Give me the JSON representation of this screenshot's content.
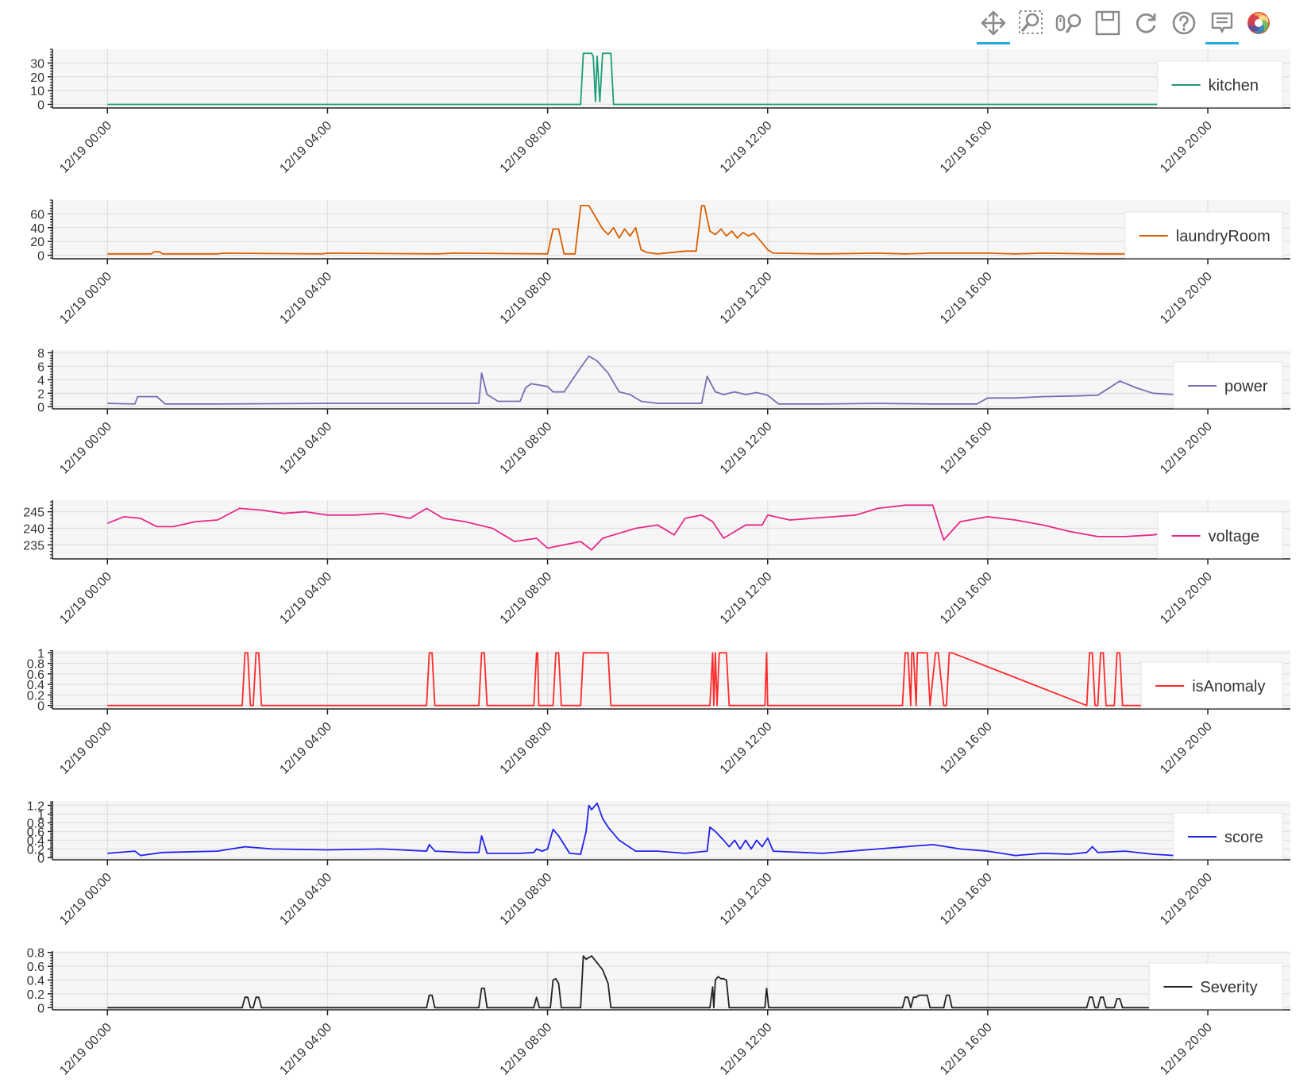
{
  "toolbar": {
    "tools": [
      {
        "name": "pan-tool",
        "icon": "pan-icon",
        "active": true
      },
      {
        "name": "box-zoom-tool",
        "icon": "box-zoom-icon",
        "active": false
      },
      {
        "name": "wheel-zoom-tool",
        "icon": "wheel-zoom-icon",
        "active": false
      },
      {
        "name": "save-tool",
        "icon": "save-icon",
        "active": false
      },
      {
        "name": "reset-tool",
        "icon": "reset-icon",
        "active": false
      },
      {
        "name": "help-tool",
        "icon": "help-icon",
        "active": false
      },
      {
        "name": "hover-tool",
        "icon": "hover-icon",
        "active": true
      },
      {
        "name": "bokeh-logo",
        "icon": "bokeh-logo-icon",
        "active": false
      }
    ],
    "accent": "#26aae1"
  },
  "chart_data": [
    {
      "type": "line",
      "series": [
        {
          "name": "kitchen",
          "color": "#1b9e77",
          "x": [
            0,
            8.6,
            8.65,
            8.8,
            8.83,
            8.87,
            8.9,
            8.95,
            9.0,
            9.05,
            9.15,
            9.2,
            9.3,
            19.4
          ],
          "y": [
            0,
            0,
            37,
            37,
            35,
            2,
            35,
            2,
            37,
            37,
            37,
            0,
            0,
            0
          ]
        }
      ],
      "yticks": [
        0,
        10,
        20,
        30
      ],
      "ylim": [
        -2,
        40
      ],
      "legend": "right",
      "xticks": [
        "12/19 00:00",
        "12/19 04:00",
        "12/19 08:00",
        "12/19 12:00",
        "12/19 16:00",
        "12/19 20:00"
      ],
      "xlim": [
        -1,
        21.5
      ],
      "grid": true
    },
    {
      "type": "line",
      "series": [
        {
          "name": "laundryRoom",
          "color": "#d95f02",
          "x": [
            0,
            0.8,
            0.85,
            0.95,
            1.0,
            2.0,
            2.1,
            3.9,
            4.0,
            6.0,
            6.3,
            8.0,
            8.1,
            8.2,
            8.3,
            8.5,
            8.6,
            8.75,
            9.0,
            9.1,
            9.2,
            9.3,
            9.4,
            9.5,
            9.6,
            9.7,
            9.8,
            10.0,
            10.5,
            10.7,
            10.8,
            10.85,
            10.95,
            11.05,
            11.15,
            11.25,
            11.35,
            11.45,
            11.55,
            11.65,
            11.75,
            11.9,
            12.0,
            12.1,
            13.0,
            14.0,
            14.5,
            15.0,
            16.0,
            16.5,
            17.0,
            18.0,
            19.4
          ],
          "y": [
            2,
            2,
            5,
            5,
            2,
            2,
            3,
            2,
            3,
            2,
            3,
            2,
            38,
            38,
            2,
            2,
            72,
            72,
            38,
            30,
            40,
            25,
            38,
            28,
            40,
            8,
            4,
            2,
            6,
            6,
            72,
            72,
            35,
            30,
            38,
            28,
            35,
            25,
            33,
            28,
            32,
            18,
            8,
            3,
            2,
            3,
            2,
            3,
            3,
            2,
            3,
            2,
            2
          ]
        }
      ],
      "yticks": [
        0,
        20,
        40,
        60
      ],
      "ylim": [
        -4,
        80
      ],
      "legend": "right",
      "xticks": [
        "12/19 00:00",
        "12/19 04:00",
        "12/19 08:00",
        "12/19 12:00",
        "12/19 16:00",
        "12/19 20:00"
      ],
      "xlim": [
        -1,
        21.5
      ],
      "grid": true
    },
    {
      "type": "line",
      "series": [
        {
          "name": "power",
          "color": "#7570b3",
          "x": [
            0,
            0.5,
            0.55,
            0.9,
            1.05,
            2.0,
            4.0,
            6.0,
            6.75,
            6.8,
            6.9,
            7.1,
            7.5,
            7.6,
            7.7,
            8.0,
            8.1,
            8.3,
            8.6,
            8.75,
            8.9,
            9.1,
            9.3,
            9.5,
            9.7,
            10.0,
            10.5,
            10.8,
            10.9,
            11.05,
            11.2,
            11.4,
            11.6,
            11.8,
            12.0,
            12.2,
            13.0,
            14.0,
            15.0,
            15.8,
            16.0,
            16.5,
            17.0,
            17.6,
            18.0,
            18.4,
            18.7,
            19.0,
            19.4
          ],
          "y": [
            0.5,
            0.4,
            1.5,
            1.5,
            0.4,
            0.4,
            0.5,
            0.5,
            0.5,
            5.0,
            1.8,
            0.8,
            0.8,
            2.8,
            3.4,
            3.0,
            2.2,
            2.2,
            5.8,
            7.5,
            6.8,
            5.0,
            2.2,
            1.8,
            0.8,
            0.5,
            0.5,
            0.5,
            4.5,
            2.2,
            1.8,
            2.2,
            1.8,
            2.1,
            1.7,
            0.4,
            0.4,
            0.5,
            0.4,
            0.4,
            1.3,
            1.3,
            1.5,
            1.6,
            1.7,
            3.8,
            2.8,
            2.0,
            1.8
          ]
        }
      ],
      "yticks": [
        0,
        2,
        4,
        6,
        8
      ],
      "ylim": [
        -0.2,
        8.4
      ],
      "legend": "right",
      "xticks": [
        "12/19 00:00",
        "12/19 04:00",
        "12/19 08:00",
        "12/19 12:00",
        "12/19 16:00",
        "12/19 20:00"
      ],
      "xlim": [
        -1,
        21.5
      ],
      "grid": true
    },
    {
      "type": "line",
      "series": [
        {
          "name": "voltage",
          "color": "#e7298a",
          "x": [
            0,
            0.3,
            0.6,
            0.9,
            1.2,
            1.6,
            2.0,
            2.4,
            2.8,
            3.2,
            3.6,
            4.0,
            4.5,
            5.0,
            5.5,
            5.8,
            6.1,
            6.5,
            7.0,
            7.4,
            7.8,
            8.0,
            8.3,
            8.6,
            8.8,
            9.0,
            9.3,
            9.6,
            10.0,
            10.3,
            10.5,
            10.8,
            11.0,
            11.2,
            11.4,
            11.6,
            11.9,
            12.0,
            12.4,
            12.8,
            13.2,
            13.6,
            14.0,
            14.5,
            15.0,
            15.2,
            15.5,
            16.0,
            16.5,
            17.0,
            17.5,
            18.0,
            18.5,
            19.0,
            19.4
          ],
          "y": [
            241.5,
            243.5,
            243,
            240.5,
            240.5,
            242,
            242.5,
            246,
            245.5,
            244.5,
            245,
            244,
            244,
            244.5,
            243,
            246,
            243,
            242,
            240,
            236,
            237,
            234,
            235,
            236,
            233.5,
            237,
            238.5,
            240,
            241,
            238,
            243,
            244,
            242,
            237,
            239,
            241,
            241,
            244,
            242.5,
            243,
            243.5,
            244,
            246,
            247,
            247,
            236.5,
            242,
            243.5,
            242.5,
            241,
            239,
            237.5,
            237.5,
            238,
            239
          ]
        }
      ],
      "yticks": [
        235,
        240,
        245
      ],
      "ylim": [
        231,
        248.5
      ],
      "legend": "right",
      "xticks": [
        "12/19 00:00",
        "12/19 04:00",
        "12/19 08:00",
        "12/19 12:00",
        "12/19 16:00",
        "12/19 20:00"
      ],
      "xlim": [
        -1,
        21.5
      ],
      "grid": true
    },
    {
      "type": "line",
      "series": [
        {
          "name": "isAnomaly",
          "color": "#ff2a2a",
          "x": [
            0,
            2.45,
            2.5,
            2.55,
            2.6,
            2.65,
            2.7,
            2.75,
            2.8,
            5.8,
            5.85,
            5.9,
            5.95,
            6.75,
            6.8,
            6.85,
            6.9,
            7.75,
            7.8,
            7.82,
            7.84,
            8.1,
            8.15,
            8.2,
            8.25,
            8.6,
            8.65,
            9.1,
            9.15,
            10.95,
            11.0,
            11.02,
            11.05,
            11.08,
            11.12,
            11.15,
            11.2,
            11.25,
            11.3,
            11.95,
            11.98,
            12.0,
            14.45,
            14.5,
            14.55,
            14.6,
            14.62,
            14.65,
            14.7,
            14.72,
            14.75,
            14.9,
            14.95,
            15.05,
            15.1,
            15.2,
            15.25,
            15.3,
            15.35,
            17.8,
            17.85,
            17.9,
            17.95,
            18.0,
            18.05,
            18.1,
            18.15,
            18.3,
            18.35,
            18.4,
            18.45,
            19.4
          ],
          "y": [
            0,
            0,
            1,
            1,
            0,
            0,
            1,
            1,
            0,
            0,
            1,
            1,
            0,
            0,
            1,
            1,
            0,
            0,
            1,
            1,
            0,
            0,
            1,
            1,
            0,
            0,
            1,
            1,
            0,
            0,
            1,
            0,
            1,
            0,
            1,
            1,
            1,
            1,
            0,
            0,
            1,
            0,
            0,
            1,
            1,
            0,
            1,
            1,
            0,
            1,
            1,
            1,
            0,
            1,
            1,
            0,
            0,
            1,
            1,
            0,
            1,
            1,
            0,
            0,
            1,
            1,
            0,
            0,
            1,
            1,
            0,
            0
          ]
        }
      ],
      "yticks": [
        0,
        0.2,
        0.4,
        0.6,
        0.8,
        1
      ],
      "ylim": [
        -0.05,
        1.05
      ],
      "legend": "right",
      "xticks": [
        "12/19 00:00",
        "12/19 04:00",
        "12/19 08:00",
        "12/19 12:00",
        "12/19 16:00",
        "12/19 20:00"
      ],
      "xlim": [
        -1,
        21.5
      ],
      "grid": true
    },
    {
      "type": "line",
      "series": [
        {
          "name": "score",
          "color": "#2222ee",
          "x": [
            0,
            0.5,
            0.6,
            1.0,
            2.0,
            2.5,
            3.0,
            4.0,
            5.0,
            5.8,
            5.85,
            5.95,
            6.5,
            6.75,
            6.8,
            6.9,
            7.5,
            7.75,
            7.8,
            7.9,
            8.0,
            8.1,
            8.2,
            8.4,
            8.6,
            8.7,
            8.75,
            8.8,
            8.9,
            9.0,
            9.1,
            9.3,
            9.6,
            10.0,
            10.5,
            10.9,
            10.95,
            11.05,
            11.2,
            11.3,
            11.4,
            11.5,
            11.6,
            11.7,
            11.8,
            11.9,
            12.0,
            12.1,
            13.0,
            14.0,
            14.5,
            15.0,
            15.5,
            16.0,
            16.5,
            17.0,
            17.5,
            17.8,
            17.9,
            18.0,
            18.5,
            19.0,
            19.4
          ],
          "y": [
            0.1,
            0.15,
            0.05,
            0.12,
            0.15,
            0.25,
            0.2,
            0.18,
            0.2,
            0.15,
            0.3,
            0.15,
            0.12,
            0.12,
            0.5,
            0.1,
            0.1,
            0.12,
            0.2,
            0.15,
            0.2,
            0.65,
            0.5,
            0.1,
            0.08,
            0.6,
            1.2,
            1.1,
            1.25,
            0.9,
            0.7,
            0.4,
            0.15,
            0.15,
            0.1,
            0.15,
            0.7,
            0.6,
            0.4,
            0.25,
            0.4,
            0.2,
            0.4,
            0.2,
            0.4,
            0.25,
            0.45,
            0.15,
            0.1,
            0.2,
            0.25,
            0.3,
            0.2,
            0.15,
            0.05,
            0.1,
            0.08,
            0.12,
            0.25,
            0.12,
            0.15,
            0.08,
            0.05
          ]
        }
      ],
      "yticks": [
        0,
        0.2,
        0.4,
        0.6,
        0.8,
        1,
        1.2
      ],
      "ylim": [
        -0.03,
        1.3
      ],
      "legend": "right",
      "xticks": [
        "12/19 00:00",
        "12/19 04:00",
        "12/19 08:00",
        "12/19 12:00",
        "12/19 16:00",
        "12/19 20:00"
      ],
      "xlim": [
        -1,
        21.5
      ],
      "grid": true
    },
    {
      "type": "line",
      "series": [
        {
          "name": "Severity",
          "color": "#222222",
          "x": [
            0,
            2.45,
            2.5,
            2.55,
            2.6,
            2.65,
            2.7,
            2.75,
            2.8,
            5.8,
            5.85,
            5.9,
            5.95,
            6.75,
            6.8,
            6.85,
            6.9,
            7.75,
            7.8,
            7.85,
            8.05,
            8.1,
            8.15,
            8.2,
            8.25,
            8.6,
            8.65,
            8.7,
            8.8,
            8.9,
            9.0,
            9.1,
            9.15,
            10.95,
            11.0,
            11.02,
            11.05,
            11.1,
            11.15,
            11.2,
            11.25,
            11.3,
            11.95,
            11.98,
            12.02,
            14.45,
            14.5,
            14.55,
            14.6,
            14.65,
            14.7,
            14.75,
            14.8,
            14.9,
            14.95,
            15.05,
            15.2,
            15.25,
            15.3,
            15.35,
            17.8,
            17.85,
            17.9,
            17.95,
            18.0,
            18.05,
            18.1,
            18.15,
            18.3,
            18.35,
            18.4,
            18.45,
            19.1
          ],
          "y": [
            0,
            0,
            0.15,
            0.15,
            0,
            0,
            0.15,
            0.15,
            0,
            0,
            0.18,
            0.18,
            0,
            0,
            0.28,
            0.28,
            0,
            0,
            0.15,
            0,
            0,
            0.4,
            0.42,
            0.35,
            0,
            0,
            0.75,
            0.7,
            0.75,
            0.65,
            0.55,
            0.35,
            0,
            0,
            0.3,
            0,
            0.4,
            0.45,
            0.42,
            0.42,
            0.4,
            0,
            0,
            0.28,
            0,
            0,
            0.15,
            0.15,
            0,
            0.15,
            0.15,
            0.18,
            0.18,
            0.18,
            0,
            0,
            0,
            0.18,
            0.18,
            0,
            0,
            0.15,
            0.15,
            0,
            0,
            0.15,
            0.15,
            0,
            0,
            0.13,
            0.13,
            0,
            0
          ]
        }
      ],
      "yticks": [
        0,
        0.2,
        0.4,
        0.6,
        0.8
      ],
      "ylim": [
        -0.02,
        0.82
      ],
      "legend": "right",
      "xticks": [
        "12/19 00:00",
        "12/19 04:00",
        "12/19 08:00",
        "12/19 12:00",
        "12/19 16:00",
        "12/19 20:00"
      ],
      "xlim": [
        -1,
        21.5
      ],
      "grid": true
    }
  ]
}
